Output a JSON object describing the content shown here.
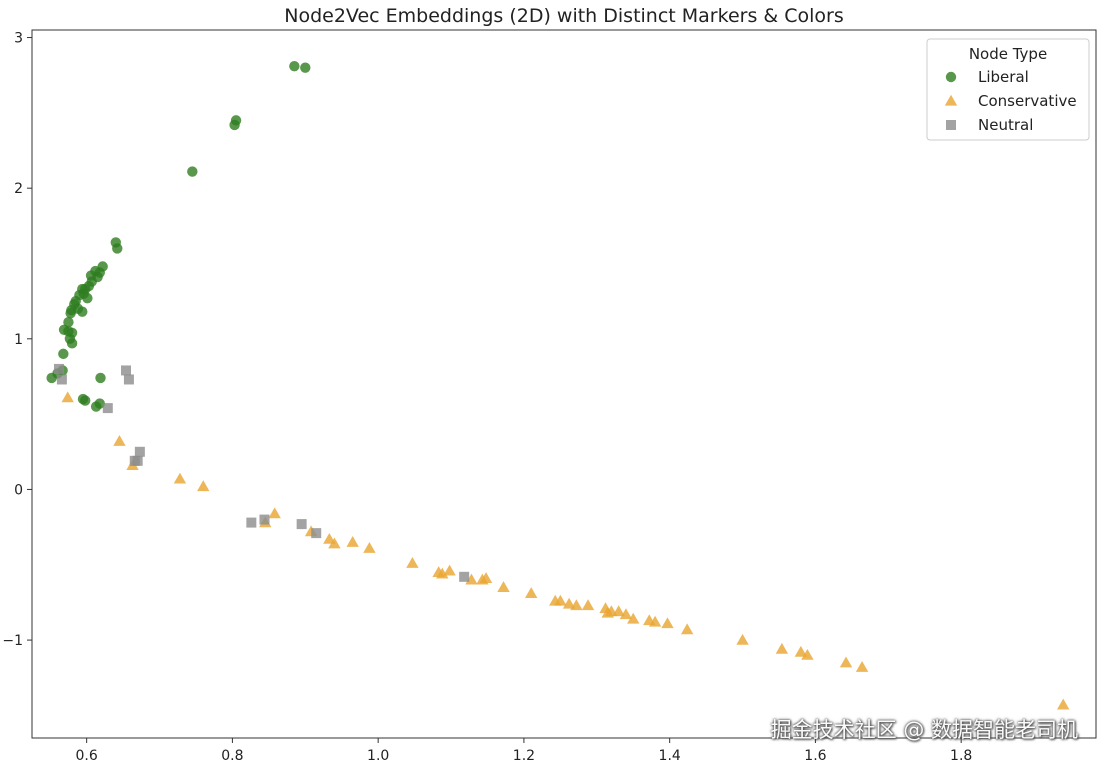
{
  "chart_data": {
    "type": "scatter",
    "title": "Node2Vec Embeddings (2D) with Distinct Markers & Colors",
    "xlabel": "",
    "ylabel": "",
    "xlim": [
      0.525,
      1.985
    ],
    "ylim": [
      -1.65,
      3.05
    ],
    "xticks": [
      0.6,
      0.8,
      1.0,
      1.2,
      1.4,
      1.6,
      1.8
    ],
    "xtick_labels": [
      "0.6",
      "0.8",
      "1.0",
      "1.2",
      "1.4",
      "1.6",
      "1.8"
    ],
    "yticks": [
      -1,
      0,
      1,
      2,
      3
    ],
    "ytick_labels": [
      "−1",
      "0",
      "1",
      "2",
      "3"
    ],
    "grid": false,
    "legend": {
      "title": "Node Type",
      "placement": "top-right"
    },
    "series": [
      {
        "name": "Liberal",
        "marker": "circle",
        "color": "#2e7d1f",
        "points": [
          [
            0.885,
            2.81
          ],
          [
            0.9,
            2.8
          ],
          [
            0.803,
            2.42
          ],
          [
            0.805,
            2.45
          ],
          [
            0.745,
            2.11
          ],
          [
            0.64,
            1.64
          ],
          [
            0.642,
            1.6
          ],
          [
            0.622,
            1.48
          ],
          [
            0.612,
            1.45
          ],
          [
            0.618,
            1.44
          ],
          [
            0.606,
            1.42
          ],
          [
            0.615,
            1.41
          ],
          [
            0.607,
            1.38
          ],
          [
            0.603,
            1.35
          ],
          [
            0.598,
            1.33
          ],
          [
            0.594,
            1.33
          ],
          [
            0.596,
            1.3
          ],
          [
            0.59,
            1.29
          ],
          [
            0.601,
            1.27
          ],
          [
            0.585,
            1.25
          ],
          [
            0.583,
            1.23
          ],
          [
            0.588,
            1.2
          ],
          [
            0.579,
            1.19
          ],
          [
            0.594,
            1.18
          ],
          [
            0.578,
            1.17
          ],
          [
            0.575,
            1.11
          ],
          [
            0.569,
            1.06
          ],
          [
            0.575,
            1.05
          ],
          [
            0.58,
            1.04
          ],
          [
            0.577,
            1.0
          ],
          [
            0.58,
            0.97
          ],
          [
            0.568,
            0.9
          ],
          [
            0.567,
            0.79
          ],
          [
            0.56,
            0.77
          ],
          [
            0.552,
            0.74
          ],
          [
            0.619,
            0.74
          ],
          [
            0.595,
            0.6
          ],
          [
            0.598,
            0.59
          ],
          [
            0.618,
            0.57
          ],
          [
            0.613,
            0.55
          ]
        ]
      },
      {
        "name": "Conservative",
        "marker": "triangle",
        "color": "#e8a530",
        "points": [
          [
            0.574,
            0.61
          ],
          [
            0.645,
            0.32
          ],
          [
            0.663,
            0.16
          ],
          [
            0.728,
            0.07
          ],
          [
            0.76,
            0.02
          ],
          [
            0.858,
            -0.16
          ],
          [
            0.845,
            -0.22
          ],
          [
            0.908,
            -0.28
          ],
          [
            0.933,
            -0.33
          ],
          [
            0.94,
            -0.36
          ],
          [
            0.965,
            -0.35
          ],
          [
            0.988,
            -0.39
          ],
          [
            1.047,
            -0.49
          ],
          [
            1.083,
            -0.55
          ],
          [
            1.088,
            -0.56
          ],
          [
            1.098,
            -0.54
          ],
          [
            1.128,
            -0.6
          ],
          [
            1.143,
            -0.6
          ],
          [
            1.148,
            -0.59
          ],
          [
            1.172,
            -0.65
          ],
          [
            1.21,
            -0.69
          ],
          [
            1.243,
            -0.74
          ],
          [
            1.25,
            -0.74
          ],
          [
            1.262,
            -0.76
          ],
          [
            1.272,
            -0.77
          ],
          [
            1.288,
            -0.77
          ],
          [
            1.312,
            -0.79
          ],
          [
            1.315,
            -0.82
          ],
          [
            1.32,
            -0.81
          ],
          [
            1.33,
            -0.81
          ],
          [
            1.34,
            -0.83
          ],
          [
            1.35,
            -0.86
          ],
          [
            1.372,
            -0.87
          ],
          [
            1.38,
            -0.88
          ],
          [
            1.397,
            -0.89
          ],
          [
            1.424,
            -0.93
          ],
          [
            1.5,
            -1.0
          ],
          [
            1.554,
            -1.06
          ],
          [
            1.58,
            -1.08
          ],
          [
            1.589,
            -1.1
          ],
          [
            1.642,
            -1.15
          ],
          [
            1.664,
            -1.18
          ],
          [
            1.94,
            -1.43
          ]
        ]
      },
      {
        "name": "Neutral",
        "marker": "square",
        "color": "#8c8c8c",
        "points": [
          [
            0.562,
            0.8
          ],
          [
            0.566,
            0.73
          ],
          [
            0.654,
            0.79
          ],
          [
            0.658,
            0.73
          ],
          [
            0.629,
            0.54
          ],
          [
            0.673,
            0.25
          ],
          [
            0.67,
            0.19
          ],
          [
            0.666,
            0.19
          ],
          [
            0.826,
            -0.22
          ],
          [
            0.844,
            -0.2
          ],
          [
            0.895,
            -0.23
          ],
          [
            0.915,
            -0.29
          ],
          [
            1.118,
            -0.58
          ]
        ]
      }
    ]
  },
  "watermark": "掘金技术社区 @ 数据智能老司机"
}
